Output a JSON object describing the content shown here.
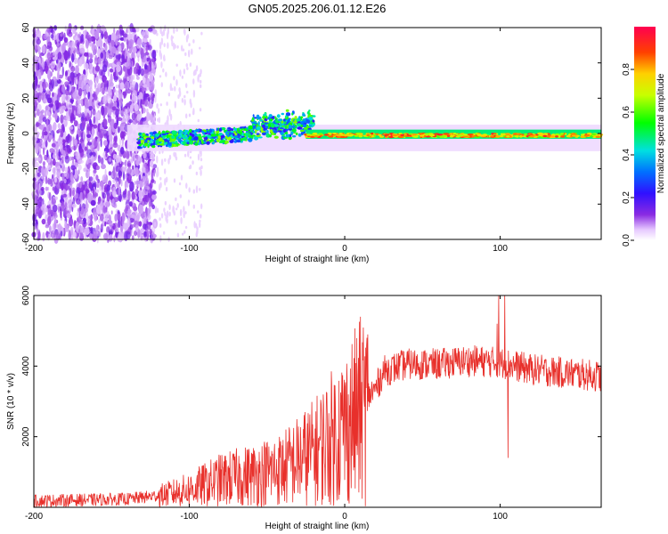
{
  "chart_data": [
    {
      "type": "heatmap",
      "title": "GN05.2025.206.01.12.E26",
      "xlabel": "Height of straight line (km)",
      "ylabel": "Frequency (Hz)",
      "xlim": [
        -200,
        165
      ],
      "ylim": [
        -60,
        60
      ],
      "x_ticks": [
        "-200",
        "-100",
        "0",
        "100"
      ],
      "y_ticks": [
        "60",
        "40",
        "20",
        "0",
        "-20",
        "-40",
        "-60"
      ],
      "colorbar": {
        "label": "Normalized spectral amplitude",
        "range": [
          0,
          1
        ],
        "ticks": [
          "0.0",
          "0.2",
          "0.4",
          "0.6",
          "0.8"
        ]
      },
      "features": {
        "noise_region_x": [
          -200,
          -122
        ],
        "noise_amplitude": 0.1,
        "band_center_hz": 0,
        "tail_start_x": -133,
        "rising_fragment_x": [
          -60,
          -20
        ],
        "strong_band_x": [
          -25,
          165
        ],
        "band_peak_amplitude": 0.9
      }
    },
    {
      "type": "line",
      "xlabel": "Height of straight line (km)",
      "ylabel": "SNR (10 * v/v)",
      "xlim": [
        -200,
        165
      ],
      "ylim": [
        0,
        6000
      ],
      "x_ticks": [
        "-200",
        "-100",
        "0",
        "100"
      ],
      "y_ticks": [
        "6000",
        "4000",
        "2000"
      ],
      "color": "#e8302b",
      "envelope": {
        "x": [
          -200,
          -140,
          -120,
          -100,
          -80,
          -60,
          -40,
          -20,
          0,
          10,
          20,
          25,
          40,
          60,
          80,
          100,
          120,
          165
        ],
        "y": [
          200,
          250,
          350,
          550,
          850,
          1000,
          1200,
          1700,
          2500,
          3000,
          3400,
          3900,
          4100,
          4100,
          4200,
          4150,
          3950,
          3750
        ]
      },
      "spikes": [
        {
          "x": 99,
          "y": 6000
        },
        {
          "x": 103,
          "y": 6000
        },
        {
          "x": 105,
          "y": 1400
        },
        {
          "x": 98,
          "y": 5200
        }
      ]
    }
  ]
}
